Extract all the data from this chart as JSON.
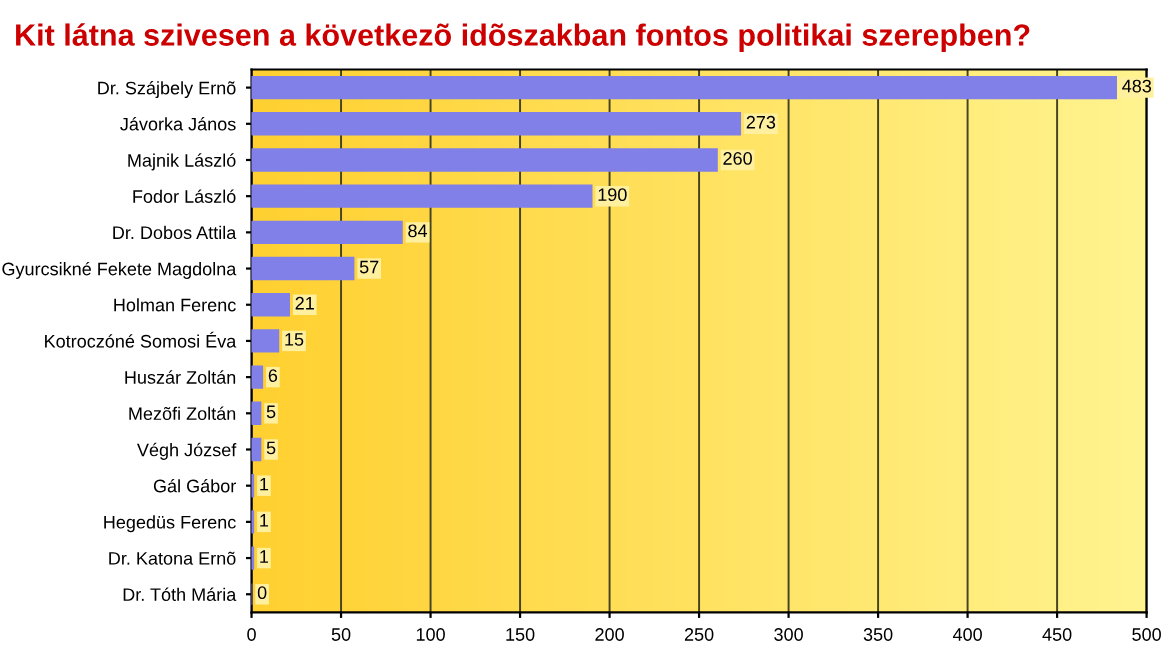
{
  "chart_data": {
    "type": "bar",
    "orientation": "horizontal",
    "title": "Kit látna szivesen a következõ idõszakban fontos politikai szerepben?",
    "categories": [
      "Dr. Szájbely Ernõ",
      "Jávorka János",
      "Majnik László",
      "Fodor László",
      "Dr. Dobos Attila",
      "Gyurcsikné Fekete Magdolna",
      "Holman Ferenc",
      "Kotroczóné Somosi Éva",
      "Huszár Zoltán",
      "Mezõfi Zoltán",
      "Végh József",
      "Gál Gábor",
      "Hegedüs Ferenc",
      "Dr. Katona Ernõ",
      "Dr. Tóth Mária"
    ],
    "values": [
      483,
      273,
      260,
      190,
      84,
      57,
      21,
      15,
      6,
      5,
      5,
      1,
      1,
      1,
      0
    ],
    "color": "#8080e8",
    "xlim": [
      0,
      500
    ],
    "xticks": [
      0,
      50,
      100,
      150,
      200,
      250,
      300,
      350,
      400,
      450,
      500
    ],
    "grid": "x",
    "data_labels": true
  }
}
